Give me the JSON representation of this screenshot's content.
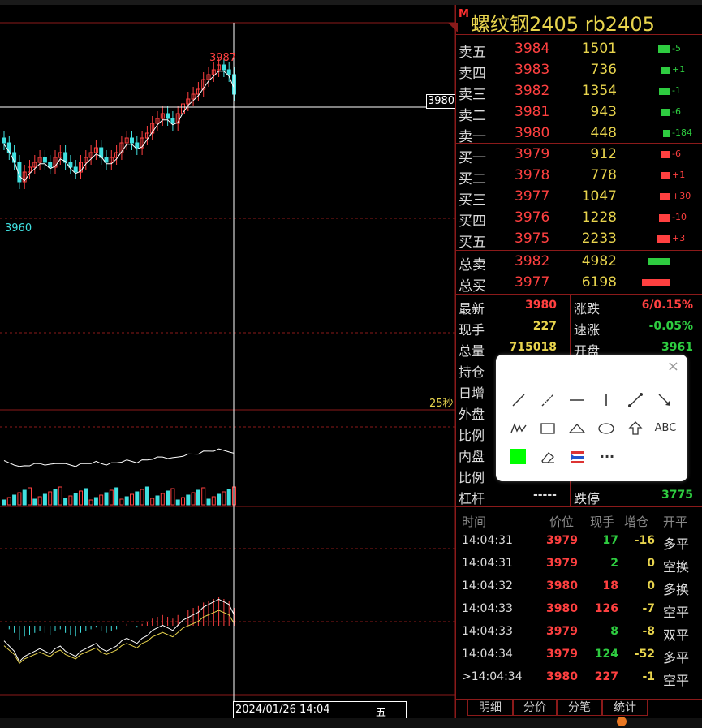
{
  "header": {
    "marker": "M",
    "title": "螺纹钢2405  rb2405"
  },
  "chart": {
    "high_label": "3987",
    "low_label": "3960",
    "crosshair_price": "3980",
    "countdown": "25秒",
    "crosshair_date": "2024/01/26 14:04",
    "weekday": "五",
    "colors": {
      "up": "#ff4040",
      "down": "#40e0e0",
      "ma": "#ffffff",
      "grid": "#8b1a1a"
    }
  },
  "orderbook": {
    "asks": [
      {
        "label": "卖五",
        "price": "3984",
        "volume": "1501",
        "change": "-5"
      },
      {
        "label": "卖四",
        "price": "3983",
        "volume": "736",
        "change": "+1"
      },
      {
        "label": "卖三",
        "price": "3982",
        "volume": "1354",
        "change": "-1"
      },
      {
        "label": "卖二",
        "price": "3981",
        "volume": "943",
        "change": "-6"
      },
      {
        "label": "卖一",
        "price": "3980",
        "volume": "448",
        "change": "-184"
      }
    ],
    "bids": [
      {
        "label": "买一",
        "price": "3979",
        "volume": "912",
        "change": "-6"
      },
      {
        "label": "买二",
        "price": "3978",
        "volume": "778",
        "change": "+1"
      },
      {
        "label": "买三",
        "price": "3977",
        "volume": "1047",
        "change": "+30"
      },
      {
        "label": "买四",
        "price": "3976",
        "volume": "1228",
        "change": "-10"
      },
      {
        "label": "买五",
        "price": "3975",
        "volume": "2233",
        "change": "+3"
      }
    ],
    "totals": [
      {
        "label": "总卖",
        "price": "3982",
        "volume": "4982"
      },
      {
        "label": "总买",
        "price": "3977",
        "volume": "6198"
      }
    ]
  },
  "stats": {
    "left": [
      {
        "label": "最新",
        "value": "3980"
      },
      {
        "label": "现手",
        "value": "227"
      },
      {
        "label": "总量",
        "value": "715018"
      },
      {
        "label": "持仓",
        "value": ""
      },
      {
        "label": "日增",
        "value": ""
      },
      {
        "label": "外盘",
        "value": ""
      },
      {
        "label": "比例",
        "value": ""
      },
      {
        "label": "内盘",
        "value": ""
      },
      {
        "label": "比例",
        "value": ""
      },
      {
        "label": "杠杆",
        "value": "-----"
      }
    ],
    "right": [
      {
        "label": "涨跌",
        "value": "6/0.15%"
      },
      {
        "label": "速涨",
        "value": "-0.05%"
      },
      {
        "label": "开盘",
        "value": "3961"
      },
      {
        "label": "",
        "value": ""
      },
      {
        "label": "",
        "value": ""
      },
      {
        "label": "",
        "value": ""
      },
      {
        "label": "",
        "value": ""
      },
      {
        "label": "",
        "value": ""
      },
      {
        "label": "",
        "value": ""
      },
      {
        "label": "跌停",
        "value": "3775"
      }
    ]
  },
  "ticks": {
    "headers": [
      "时间",
      "价位",
      "现手",
      "增仓",
      "开平"
    ],
    "rows": [
      {
        "time": "14:04:31",
        "price": "3979",
        "volume": "17",
        "oi": "-16",
        "type": "多平"
      },
      {
        "time": "14:04:31",
        "price": "3979",
        "volume": "2",
        "oi": "0",
        "type": "空换"
      },
      {
        "time": "14:04:32",
        "price": "3980",
        "volume": "18",
        "oi": "0",
        "type": "多换"
      },
      {
        "time": "14:04:33",
        "price": "3980",
        "volume": "126",
        "oi": "-7",
        "type": "空平"
      },
      {
        "time": "14:04:33",
        "price": "3979",
        "volume": "8",
        "oi": "-8",
        "type": "双平"
      },
      {
        "time": "14:04:34",
        "price": "3979",
        "volume": "124",
        "oi": "-52",
        "type": "多平"
      },
      {
        "time": ">14:04:34",
        "price": "3980",
        "volume": "227",
        "oi": "-1",
        "type": "空平"
      }
    ]
  },
  "tabs": [
    "明细",
    "分价",
    "分笔",
    "统计"
  ],
  "toolbox": {
    "close": "×",
    "text_tool": "ABC",
    "more": "···",
    "fill_color": "#00ff00"
  }
}
